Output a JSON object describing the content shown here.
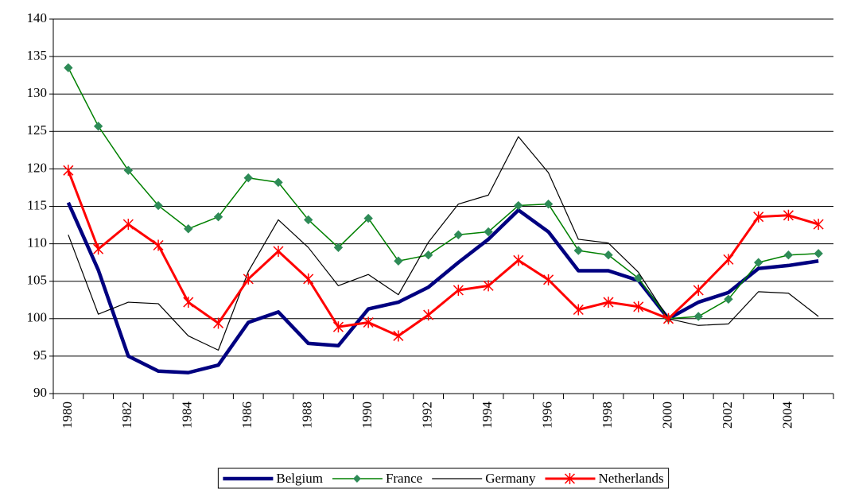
{
  "chart_data": {
    "type": "line",
    "categories": [
      "1980",
      null,
      "1982",
      null,
      "1984",
      null,
      "1986",
      null,
      "1988",
      null,
      "1990",
      null,
      "1992",
      null,
      "1994",
      null,
      "1996",
      null,
      "1998",
      null,
      "2000",
      null,
      "2002",
      null,
      "2004",
      null
    ],
    "series": [
      {
        "name": "Belgium",
        "color": "#000080",
        "width": 4.5,
        "marker": null,
        "values": [
          115.5,
          106.5,
          95,
          93,
          92.8,
          93.8,
          99.5,
          100.9,
          96.7,
          96.4,
          101.3,
          102.2,
          104.2,
          107.5,
          110.6,
          114.5,
          111.6,
          106.4,
          106.4,
          105.1,
          100,
          102.2,
          103.5,
          106.7,
          107.1,
          107.7
        ]
      },
      {
        "name": "France",
        "color": "#008000",
        "width": 1.5,
        "marker": "diamond",
        "values": [
          133.5,
          125.7,
          119.8,
          115.1,
          112,
          113.6,
          118.8,
          118.2,
          113.2,
          109.5,
          113.4,
          107.7,
          108.5,
          111.2,
          111.6,
          115.1,
          115.3,
          109.1,
          108.5,
          105.4,
          100,
          100.3,
          102.6,
          107.5,
          108.5,
          108.7
        ]
      },
      {
        "name": "Germany",
        "color": "#000000",
        "width": 1.2,
        "marker": null,
        "values": [
          111.2,
          100.6,
          102.2,
          102,
          97.7,
          95.8,
          106.3,
          113.2,
          109.5,
          104.4,
          105.9,
          103.2,
          110.2,
          115.3,
          116.5,
          124.3,
          119.5,
          110.6,
          110.1,
          106.2,
          100,
          99.1,
          99.3,
          103.6,
          103.4,
          100.3
        ]
      },
      {
        "name": "Netherlands",
        "color": "#ff0000",
        "width": 3,
        "marker": "star",
        "values": [
          119.8,
          109.3,
          112.6,
          109.8,
          102.2,
          99.4,
          105.3,
          109,
          105.3,
          98.9,
          99.5,
          97.7,
          100.5,
          103.8,
          104.4,
          107.8,
          105.2,
          101.2,
          102.2,
          101.6,
          100,
          103.8,
          107.9,
          113.6,
          113.8,
          112.6
        ]
      }
    ],
    "ylim": [
      90,
      140
    ],
    "yticks": [
      90,
      95,
      100,
      105,
      110,
      115,
      120,
      125,
      130,
      135,
      140
    ],
    "grid": true,
    "legend": "bottom"
  }
}
